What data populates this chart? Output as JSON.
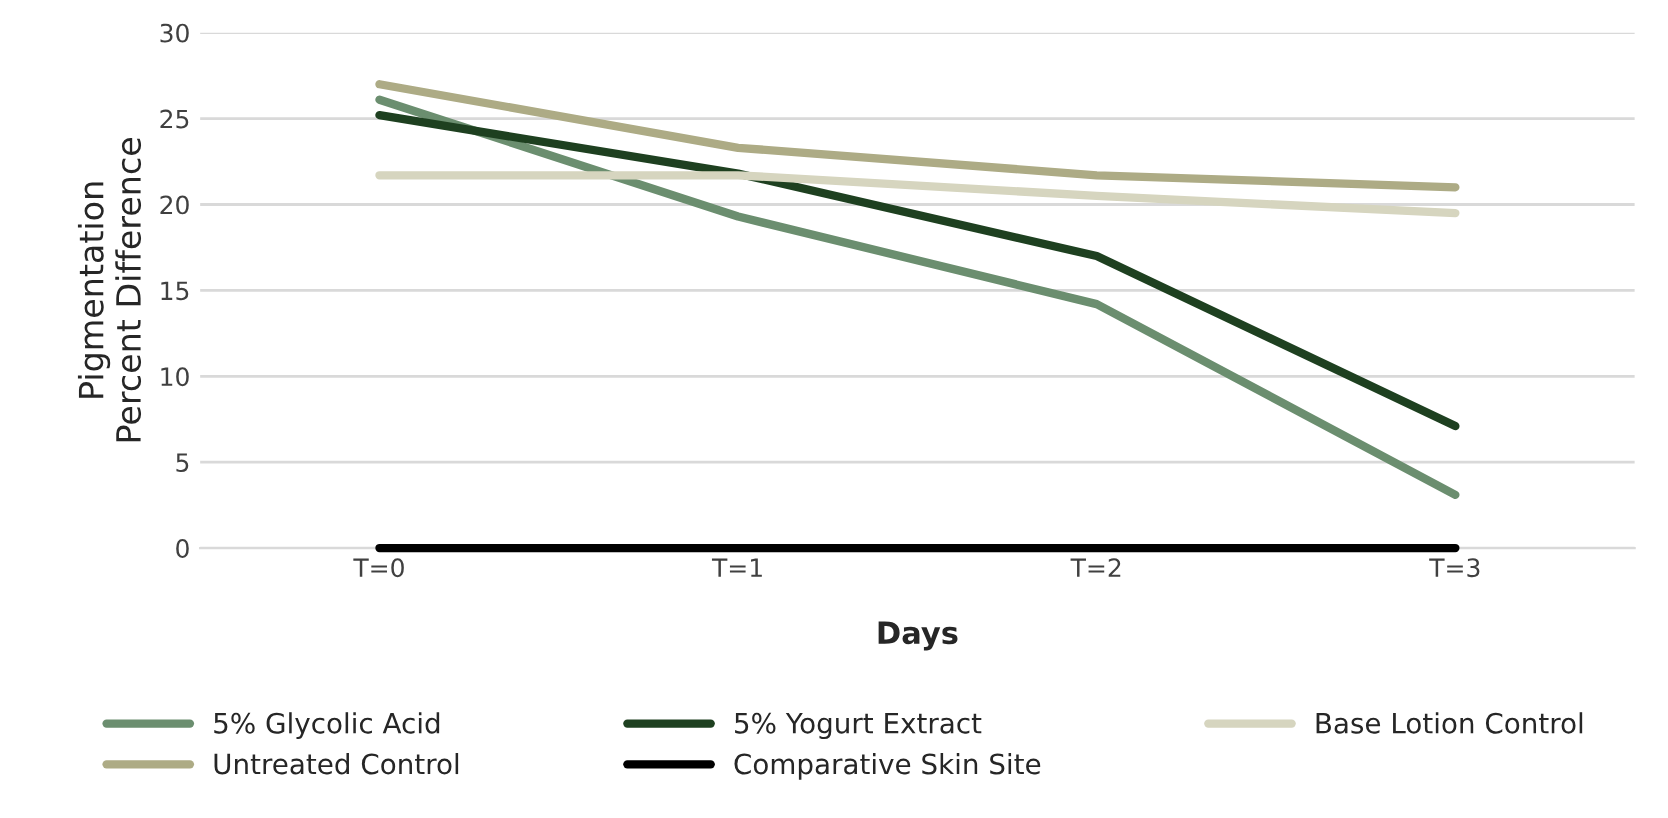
{
  "chart_data": {
    "type": "line",
    "xlabel": "Days",
    "ylabel": "Pigmentation\nPercent Difference",
    "categories": [
      "T=0",
      "T=1",
      "T=2",
      "T=3"
    ],
    "series": [
      {
        "name": "5% Glycolic Acid",
        "color": "#6b8e6f",
        "values": [
          26.1,
          19.3,
          14.2,
          3.1
        ]
      },
      {
        "name": "5% Yogurt Extract",
        "color": "#1e4020",
        "values": [
          25.2,
          21.8,
          17.0,
          7.1
        ]
      },
      {
        "name": "Base Lotion Control",
        "color": "#d6d5bf",
        "values": [
          21.7,
          21.7,
          20.5,
          19.5
        ]
      },
      {
        "name": "Untreated Control",
        "color": "#adab85",
        "values": [
          27.0,
          23.3,
          21.7,
          21.0
        ]
      },
      {
        "name": "Comparative Skin Site",
        "color": "#000000",
        "values": [
          0,
          0,
          0,
          0
        ]
      }
    ],
    "ylim": [
      0,
      30
    ],
    "yticks": [
      0,
      5,
      10,
      15,
      20,
      25,
      30
    ],
    "grid": "y",
    "legend": "bottom",
    "marker": "none",
    "line_style": "solid"
  }
}
